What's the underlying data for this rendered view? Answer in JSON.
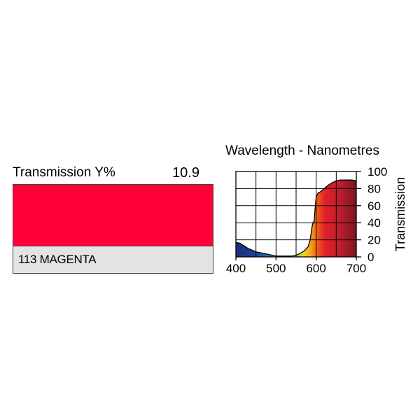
{
  "filter": {
    "transmission_label": "Transmission Y%",
    "transmission_value": "10.9",
    "name": "113 MAGENTA",
    "swatch_color": "#ff0038"
  },
  "chart_data": {
    "type": "area",
    "title": "Wavelength - Nanometres",
    "xlabel": "",
    "ylabel": "Transmission",
    "xlim": [
      400,
      700
    ],
    "ylim": [
      0,
      100
    ],
    "x_ticks": [
      400,
      500,
      600,
      700
    ],
    "y_ticks": [
      0,
      20,
      40,
      60,
      80,
      100
    ],
    "grid": true,
    "x": [
      400,
      410,
      420,
      430,
      440,
      450,
      460,
      470,
      480,
      490,
      500,
      510,
      520,
      530,
      540,
      550,
      560,
      570,
      580,
      585,
      590,
      592,
      595,
      598,
      600,
      605,
      610,
      620,
      630,
      640,
      650,
      660,
      670,
      680,
      690,
      700
    ],
    "y": [
      17,
      16,
      13,
      10,
      8,
      6,
      5,
      4,
      3,
      2,
      1,
      1,
      1,
      1,
      1,
      2,
      4,
      7,
      12,
      20,
      36,
      40,
      42,
      60,
      70,
      75,
      76,
      80,
      84,
      87,
      89,
      90,
      90,
      90,
      90,
      89
    ]
  }
}
